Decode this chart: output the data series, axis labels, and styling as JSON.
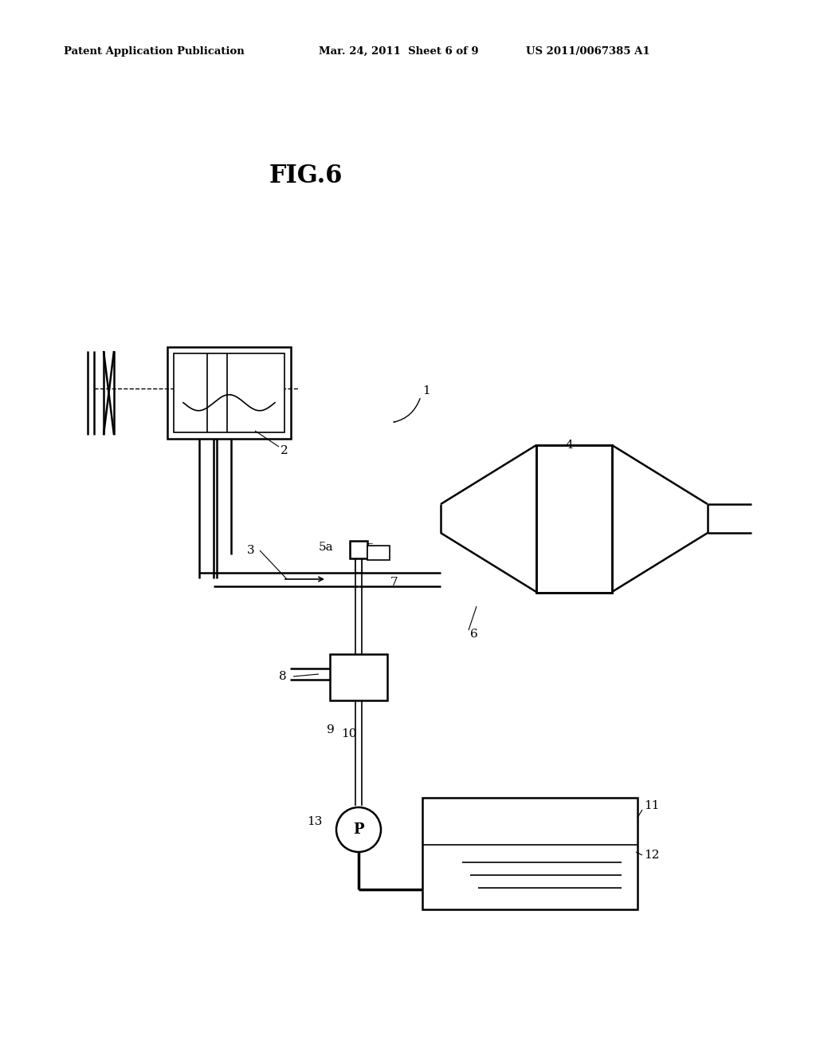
{
  "bg_color": "#ffffff",
  "line_color": "#000000",
  "header_left": "Patent Application Publication",
  "header_mid": "Mar. 24, 2011  Sheet 6 of 9",
  "header_right": "US 2011/0067385 A1",
  "fig_label": "FIG.6"
}
